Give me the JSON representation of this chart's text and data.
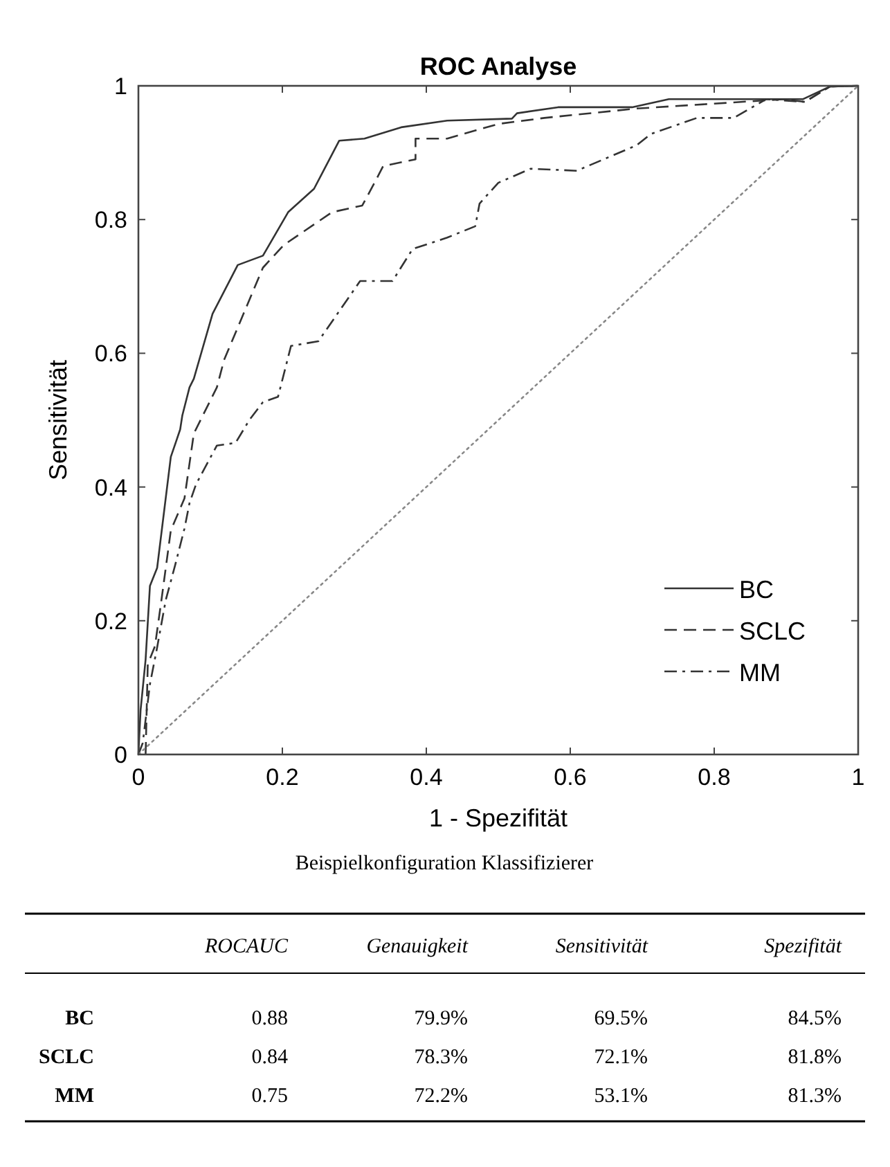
{
  "chart_data": [
    {
      "type": "line",
      "title": "ROC Analyse",
      "xlabel": "1 - Spezifität",
      "ylabel": "Sensitivität",
      "xlim": [
        0,
        1
      ],
      "ylim": [
        0,
        1
      ],
      "xticks": [
        0,
        0.2,
        0.4,
        0.6,
        0.8,
        1
      ],
      "yticks": [
        0,
        0.2,
        0.4,
        0.6,
        0.8,
        1
      ],
      "grid": false,
      "legend": "bottom right",
      "series": [
        {
          "name": "BC",
          "color": "#333333",
          "line_style": "solid",
          "x": [
            0,
            0.003,
            0.01,
            0.016,
            0.026,
            0.045,
            0.058,
            0.061,
            0.071,
            0.077,
            0.103,
            0.138,
            0.173,
            0.208,
            0.244,
            0.279,
            0.314,
            0.365,
            0.429,
            0.519,
            0.526,
            0.583,
            0.686,
            0.737,
            0.923,
            0.961,
            1
          ],
          "values": [
            0,
            0.066,
            0.142,
            0.252,
            0.279,
            0.445,
            0.486,
            0.507,
            0.549,
            0.562,
            0.659,
            0.732,
            0.746,
            0.811,
            0.846,
            0.918,
            0.921,
            0.938,
            0.948,
            0.951,
            0.959,
            0.968,
            0.968,
            0.98,
            0.98,
            0.999,
            1
          ]
        },
        {
          "name": "SCLC",
          "color": "#333333",
          "line_style": "dashed",
          "x": [
            0.01,
            0.013,
            0.023,
            0.032,
            0.045,
            0.064,
            0.077,
            0.109,
            0.119,
            0.173,
            0.202,
            0.269,
            0.311,
            0.33,
            0.34,
            0.385,
            0.385,
            0.429,
            0.5,
            0.564,
            0.692,
            0.897,
            0.926,
            0.961,
            1
          ],
          "values": [
            0,
            0.135,
            0.162,
            0.231,
            0.335,
            0.383,
            0.48,
            0.549,
            0.59,
            0.728,
            0.762,
            0.811,
            0.821,
            0.859,
            0.88,
            0.89,
            0.921,
            0.921,
            0.943,
            0.952,
            0.966,
            0.98,
            0.976,
            0.999,
            1
          ]
        },
        {
          "name": "MM",
          "color": "#333333",
          "line_style": "dashdot",
          "x": [
            0,
            0.006,
            0.016,
            0.026,
            0.038,
            0.051,
            0.064,
            0.071,
            0.08,
            0.109,
            0.135,
            0.154,
            0.173,
            0.194,
            0.212,
            0.25,
            0.308,
            0.353,
            0.381,
            0.429,
            0.468,
            0.474,
            0.5,
            0.545,
            0.609,
            0.692,
            0.712,
            0.776,
            0.827,
            0.872,
            0.926,
            0.961,
            1
          ],
          "values": [
            0,
            0.017,
            0.105,
            0.16,
            0.231,
            0.283,
            0.338,
            0.376,
            0.404,
            0.462,
            0.466,
            0.5,
            0.527,
            0.535,
            0.611,
            0.618,
            0.708,
            0.708,
            0.756,
            0.773,
            0.79,
            0.824,
            0.855,
            0.876,
            0.873,
            0.911,
            0.928,
            0.952,
            0.952,
            0.98,
            0.976,
            0.999,
            1
          ]
        },
        {
          "color": "#888888",
          "line_style": "dotted",
          "x": [
            0,
            1
          ],
          "values": [
            0,
            1
          ]
        }
      ]
    },
    {
      "type": "other",
      "title": "Beispielkonfiguration Klassifizierer",
      "categories": [
        "ROCAUC",
        "Genauigkeit",
        "Sensitivität",
        "Spezifität"
      ],
      "y_categories": [
        "BC",
        "SCLC",
        "MM"
      ],
      "cell_labels": [
        [
          "0.88",
          "79.9%",
          "69.5%",
          "84.5%"
        ],
        [
          "0.84",
          "78.3%",
          "72.1%",
          "81.8%"
        ],
        [
          "0.75",
          "72.2%",
          "53.1%",
          "81.3%"
        ]
      ]
    }
  ]
}
